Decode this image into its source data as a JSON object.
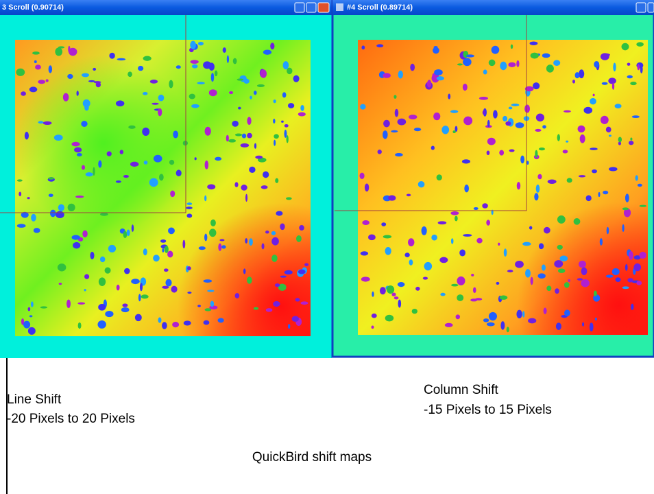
{
  "windows": [
    {
      "title": "3 Scroll (0.90714)"
    },
    {
      "title": "#4 Scroll (0.89714)"
    }
  ],
  "captions": {
    "left": {
      "line1": "Line Shift",
      "line2": "-20 Pixels to 20 Pixels"
    },
    "right": {
      "line1": "Column Shift",
      "line2": "-15 Pixels to 15 Pixels"
    },
    "footer": "QuickBird shift maps"
  }
}
